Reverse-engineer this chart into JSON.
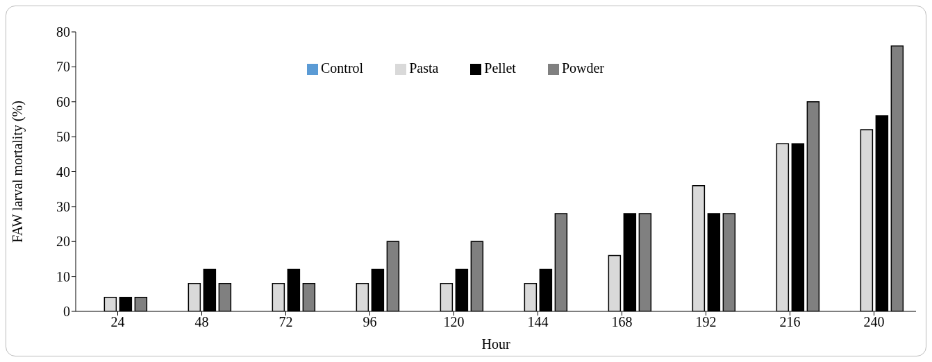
{
  "chart_data": {
    "type": "bar",
    "xlabel": "Hour",
    "ylabel": "FAW larval mortality (%)",
    "categories": [
      "24",
      "48",
      "72",
      "96",
      "120",
      "144",
      "168",
      "192",
      "216",
      "240"
    ],
    "series": [
      {
        "name": "Control",
        "color": "#5b9bd5",
        "values": [
          0,
          0,
          0,
          0,
          0,
          0,
          0,
          0,
          0,
          0
        ]
      },
      {
        "name": "Pasta",
        "color": "#d9d9d9",
        "values": [
          4,
          8,
          8,
          8,
          8,
          8,
          16,
          36,
          48,
          52
        ]
      },
      {
        "name": "Pellet",
        "color": "#000000",
        "values": [
          4,
          12,
          12,
          12,
          12,
          12,
          28,
          28,
          48,
          56
        ]
      },
      {
        "name": "Powder",
        "color": "#808080",
        "values": [
          4,
          8,
          8,
          20,
          20,
          28,
          28,
          28,
          60,
          76
        ]
      }
    ],
    "ylim": [
      0,
      80
    ],
    "yticks": [
      0,
      10,
      20,
      30,
      40,
      50,
      60,
      70,
      80
    ],
    "grid": false,
    "legend": "top"
  }
}
